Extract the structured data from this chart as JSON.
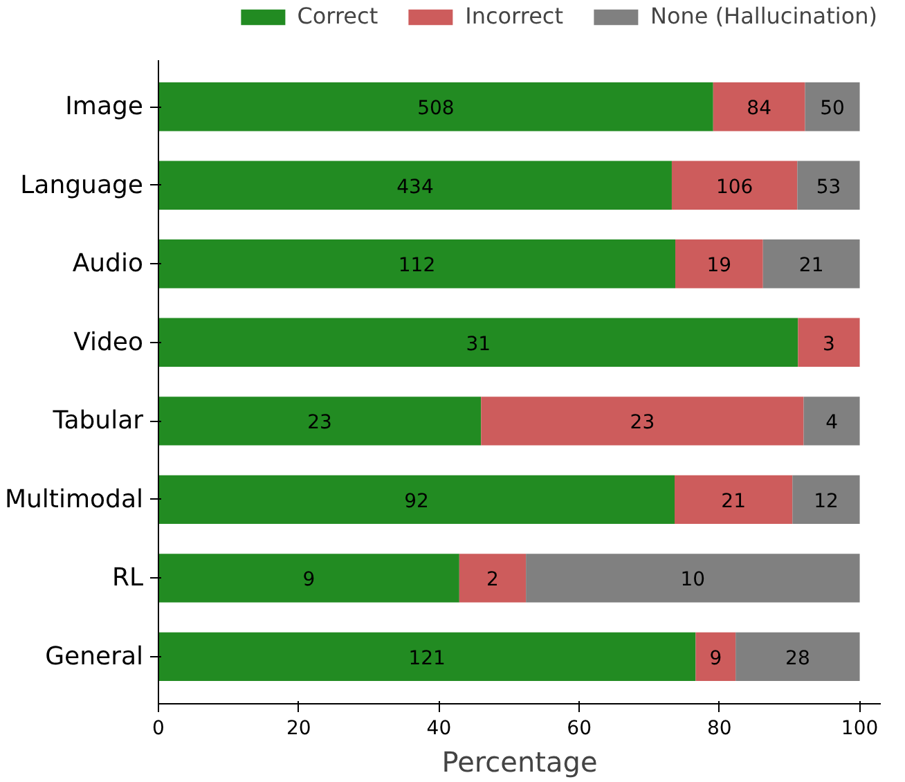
{
  "chart_data": {
    "type": "bar",
    "orientation": "horizontal",
    "stacked": true,
    "xlabel": "Percentage",
    "categories": [
      "Image",
      "Language",
      "Audio",
      "Video",
      "Tabular",
      "Multimodal",
      "RL",
      "General"
    ],
    "series": [
      {
        "name": "Correct",
        "color": "#228b22",
        "values": [
          79.1,
          73.2,
          73.7,
          91.2,
          46.0,
          73.6,
          42.9,
          76.6
        ]
      },
      {
        "name": "Incorrect",
        "color": "#cd5c5c",
        "values": [
          13.1,
          17.9,
          12.5,
          8.8,
          46.0,
          16.8,
          9.5,
          5.7
        ]
      },
      {
        "name": "None (Hallucination)",
        "color": "#808080",
        "values": [
          7.8,
          8.9,
          13.8,
          0,
          8.0,
          9.6,
          47.6,
          17.7
        ]
      }
    ],
    "annotations": [
      "508",
      "84",
      "50",
      "434",
      "106",
      "53",
      "112",
      "19",
      "21",
      "31",
      "3",
      "23",
      "23",
      "4",
      "92",
      "21",
      "12",
      "9",
      "2",
      "10",
      "121",
      "9",
      "28"
    ],
    "xlim": [
      0,
      103
    ],
    "xticks": [
      0,
      20,
      40,
      60,
      80,
      100
    ],
    "grid": false,
    "legend": "top"
  }
}
